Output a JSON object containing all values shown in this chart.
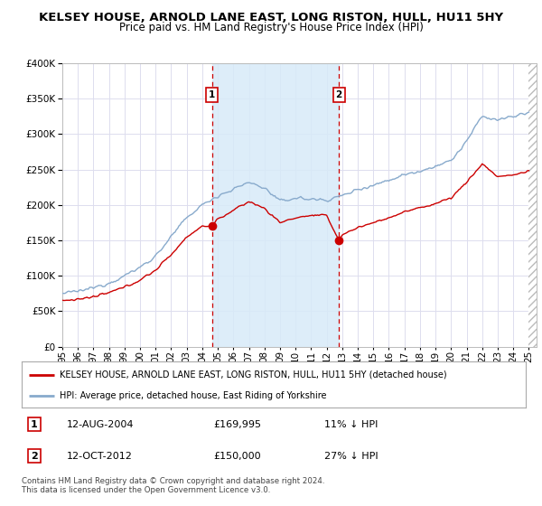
{
  "title": "KELSEY HOUSE, ARNOLD LANE EAST, LONG RISTON, HULL, HU11 5HY",
  "subtitle": "Price paid vs. HM Land Registry's House Price Index (HPI)",
  "ylim": [
    0,
    400000
  ],
  "yticks": [
    0,
    50000,
    100000,
    150000,
    200000,
    250000,
    300000,
    350000,
    400000
  ],
  "xlim_start": 1995.0,
  "xlim_end": 2025.5,
  "sale1_year": 2004.617,
  "sale1_price": 169995,
  "sale1_label": "1",
  "sale1_date": "12-AUG-2004",
  "sale1_pct": "11% ↓ HPI",
  "sale2_year": 2012.79,
  "sale2_price": 150000,
  "sale2_label": "2",
  "sale2_date": "12-OCT-2012",
  "sale2_pct": "27% ↓ HPI",
  "legend_house": "KELSEY HOUSE, ARNOLD LANE EAST, LONG RISTON, HULL, HU11 5HY (detached house)",
  "legend_hpi": "HPI: Average price, detached house, East Riding of Yorkshire",
  "footnote": "Contains HM Land Registry data © Crown copyright and database right 2024.\nThis data is licensed under the Open Government Licence v3.0.",
  "house_color": "#cc0000",
  "hpi_color": "#88aacc",
  "shade_color": "#d8eaf8",
  "vline_color": "#cc0000",
  "background_chart": "#ffffff",
  "background_fig": "#ffffff",
  "grid_color": "#ddddee",
  "title_fontsize": 9.5,
  "subtitle_fontsize": 8.5,
  "tick_fontsize": 7.5,
  "legend_fontsize": 7.5
}
